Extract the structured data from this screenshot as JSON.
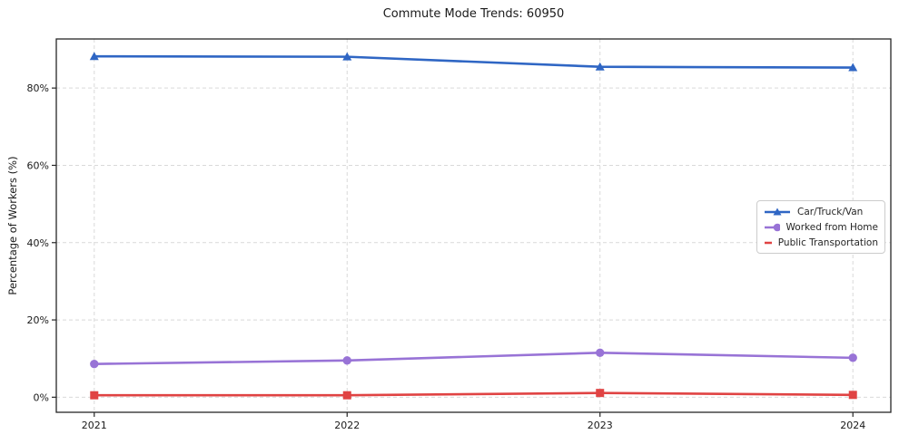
{
  "chart_data": {
    "type": "line",
    "title": "Commute Mode Trends: 60950",
    "xlabel": "",
    "ylabel": "Percentage of Workers (%)",
    "x": [
      2021,
      2022,
      2023,
      2024
    ],
    "x_tick_labels": [
      "2021",
      "2022",
      "2023",
      "2024"
    ],
    "y_ticks": [
      0,
      20,
      40,
      60,
      80
    ],
    "y_tick_labels": [
      "0%",
      "20%",
      "40%",
      "60%",
      "80%"
    ],
    "xlim": [
      2020.85,
      2024.15
    ],
    "ylim": [
      -3.9,
      92.7
    ],
    "grid": "both-dashed",
    "legend_position": "center-right",
    "series": [
      {
        "name": "Car/Truck/Van",
        "color": "#2f66c4",
        "marker": "triangle",
        "values": [
          88.2,
          88.1,
          85.5,
          85.3
        ]
      },
      {
        "name": "Worked from Home",
        "color": "#9873d6",
        "marker": "circle",
        "values": [
          8.6,
          9.5,
          11.5,
          10.2
        ]
      },
      {
        "name": "Public Transportation",
        "color": "#e04343",
        "marker": "square",
        "values": [
          0.5,
          0.5,
          1.1,
          0.6
        ]
      }
    ],
    "colors": {
      "grid": "#d9d9d9",
      "axis_border": "#262626",
      "tick_text": "#1a1a1a",
      "background": "#ffffff"
    }
  }
}
